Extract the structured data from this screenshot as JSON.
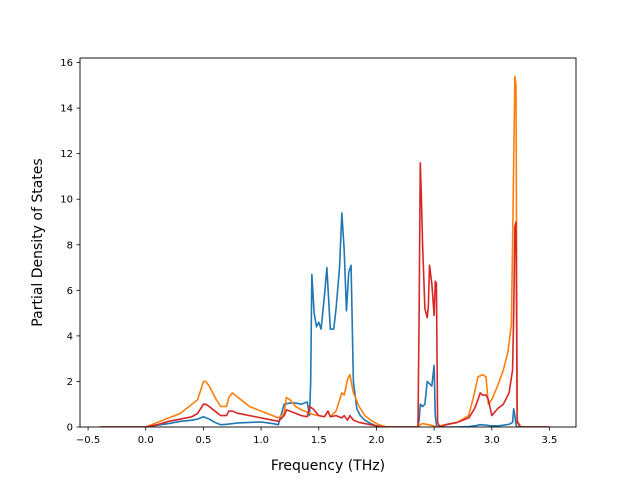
{
  "chart_data": {
    "type": "line",
    "title": "",
    "xlabel": "Frequency (THz)",
    "ylabel": "Partial Density of States",
    "xlim": [
      -0.57,
      3.73
    ],
    "ylim": [
      0,
      16.2
    ],
    "xticks": [
      -0.5,
      0.0,
      0.5,
      1.0,
      1.5,
      2.0,
      2.5,
      3.0,
      3.5
    ],
    "xtick_labels": [
      "−0.5",
      "0.0",
      "0.5",
      "1.0",
      "1.5",
      "2.0",
      "2.5",
      "3.0",
      "3.5"
    ],
    "yticks": [
      0,
      2,
      4,
      6,
      8,
      10,
      12,
      14,
      16
    ],
    "ytick_labels": [
      "0",
      "2",
      "4",
      "6",
      "8",
      "10",
      "12",
      "14",
      "16"
    ],
    "grid": false,
    "legend": "none",
    "series": [
      {
        "name": "series-1",
        "color": "#1f77b4",
        "x": [
          -0.4,
          0.0,
          0.1,
          0.2,
          0.3,
          0.4,
          0.45,
          0.5,
          0.55,
          0.6,
          0.65,
          0.7,
          0.8,
          0.9,
          1.0,
          1.1,
          1.15,
          1.2,
          1.25,
          1.3,
          1.35,
          1.4,
          1.42,
          1.43,
          1.44,
          1.46,
          1.48,
          1.5,
          1.52,
          1.55,
          1.57,
          1.6,
          1.63,
          1.65,
          1.68,
          1.7,
          1.72,
          1.74,
          1.76,
          1.78,
          1.8,
          1.83,
          1.86,
          1.9,
          1.95,
          2.0,
          2.05,
          2.1,
          2.2,
          2.3,
          2.36,
          2.37,
          2.38,
          2.4,
          2.42,
          2.44,
          2.46,
          2.48,
          2.5,
          2.51,
          2.52,
          2.53,
          2.55,
          2.6,
          2.7,
          2.8,
          2.85,
          2.9,
          2.95,
          3.0,
          3.05,
          3.1,
          3.15,
          3.18,
          3.19,
          3.2,
          3.21,
          3.22,
          3.25,
          3.3,
          3.5
        ],
        "y": [
          0,
          0,
          0.08,
          0.15,
          0.25,
          0.3,
          0.35,
          0.45,
          0.35,
          0.2,
          0.1,
          0.12,
          0.18,
          0.2,
          0.22,
          0.15,
          0.1,
          1.0,
          1.05,
          1.05,
          1.0,
          1.1,
          0.5,
          2.0,
          6.7,
          5.0,
          4.4,
          4.6,
          4.3,
          5.8,
          7.0,
          4.3,
          4.3,
          5.2,
          7.0,
          9.4,
          7.8,
          5.1,
          6.8,
          7.1,
          2.0,
          0.8,
          0.5,
          0.3,
          0.15,
          0.05,
          0,
          0,
          0,
          0,
          0,
          0.3,
          1.0,
          0.9,
          1.0,
          2.0,
          1.9,
          1.8,
          2.7,
          0.5,
          0.1,
          0,
          0,
          0,
          0,
          0.02,
          0.05,
          0.1,
          0.08,
          0.05,
          0.05,
          0.08,
          0.12,
          0.2,
          0.8,
          0.5,
          0.1,
          0,
          0,
          0,
          0
        ]
      },
      {
        "name": "series-2",
        "color": "#ff7f0e",
        "x": [
          -0.4,
          0.0,
          0.1,
          0.2,
          0.3,
          0.35,
          0.4,
          0.45,
          0.5,
          0.52,
          0.55,
          0.6,
          0.65,
          0.7,
          0.72,
          0.75,
          0.8,
          0.85,
          0.9,
          0.95,
          1.0,
          1.05,
          1.1,
          1.15,
          1.2,
          1.22,
          1.25,
          1.3,
          1.35,
          1.4,
          1.45,
          1.5,
          1.55,
          1.58,
          1.6,
          1.65,
          1.7,
          1.72,
          1.75,
          1.77,
          1.8,
          1.85,
          1.9,
          1.95,
          2.0,
          2.05,
          2.1,
          2.2,
          2.3,
          2.36,
          2.38,
          2.4,
          2.45,
          2.5,
          2.52,
          2.55,
          2.6,
          2.7,
          2.8,
          2.85,
          2.88,
          2.92,
          2.95,
          2.97,
          3.0,
          3.05,
          3.1,
          3.14,
          3.17,
          3.18,
          3.2,
          3.21,
          3.22,
          3.25,
          3.3,
          3.5
        ],
        "y": [
          0,
          0,
          0.2,
          0.4,
          0.6,
          0.8,
          1.0,
          1.2,
          2.0,
          2.0,
          1.8,
          1.3,
          0.9,
          0.9,
          1.3,
          1.5,
          1.3,
          1.1,
          0.9,
          0.8,
          0.7,
          0.6,
          0.5,
          0.4,
          0.6,
          1.3,
          1.2,
          0.9,
          0.75,
          0.65,
          0.55,
          0.5,
          0.45,
          0.7,
          0.45,
          0.7,
          1.5,
          1.4,
          2.1,
          2.3,
          1.5,
          0.9,
          0.5,
          0.3,
          0.15,
          0.05,
          0,
          0,
          0,
          0,
          0.1,
          0.15,
          0.1,
          0.05,
          0,
          0.05,
          0.1,
          0.2,
          0.5,
          1.5,
          2.2,
          2.3,
          2.2,
          1.0,
          1.2,
          1.8,
          2.5,
          3.3,
          4.5,
          8.0,
          15.4,
          15.0,
          0.3,
          0,
          0,
          0
        ]
      },
      {
        "name": "series-3",
        "color": "#d62728",
        "x": [
          -0.4,
          0.0,
          0.1,
          0.2,
          0.3,
          0.4,
          0.45,
          0.5,
          0.52,
          0.55,
          0.6,
          0.65,
          0.7,
          0.72,
          0.75,
          0.8,
          0.85,
          0.9,
          0.95,
          1.0,
          1.05,
          1.1,
          1.15,
          1.2,
          1.22,
          1.25,
          1.3,
          1.35,
          1.4,
          1.42,
          1.45,
          1.5,
          1.55,
          1.58,
          1.6,
          1.65,
          1.7,
          1.72,
          1.75,
          1.77,
          1.8,
          1.85,
          1.9,
          2.0,
          2.05,
          2.1,
          2.2,
          2.3,
          2.36,
          2.37,
          2.38,
          2.39,
          2.4,
          2.42,
          2.44,
          2.45,
          2.46,
          2.48,
          2.5,
          2.51,
          2.52,
          2.53,
          2.55,
          2.6,
          2.7,
          2.8,
          2.85,
          2.88,
          2.9,
          2.92,
          2.95,
          2.97,
          3.0,
          3.05,
          3.1,
          3.15,
          3.18,
          3.19,
          3.2,
          3.21,
          3.22,
          3.25,
          3.3,
          3.5
        ],
        "y": [
          0,
          0,
          0.1,
          0.25,
          0.35,
          0.45,
          0.6,
          1.0,
          1.0,
          0.9,
          0.7,
          0.5,
          0.5,
          0.7,
          0.7,
          0.6,
          0.55,
          0.5,
          0.45,
          0.4,
          0.35,
          0.3,
          0.25,
          0.5,
          0.75,
          0.7,
          0.6,
          0.5,
          0.45,
          0.9,
          0.8,
          0.5,
          0.45,
          0.7,
          0.45,
          0.5,
          0.4,
          0.5,
          0.3,
          0.5,
          0.3,
          0.2,
          0.15,
          0.05,
          0,
          0,
          0,
          0,
          0,
          5.0,
          11.6,
          10.0,
          8.0,
          5.2,
          4.8,
          5.3,
          7.1,
          6.3,
          4.9,
          6.4,
          6.3,
          0.2,
          0,
          0.1,
          0.2,
          0.4,
          0.8,
          1.2,
          1.5,
          1.4,
          1.4,
          1.2,
          0.5,
          0.8,
          1.0,
          1.5,
          2.5,
          5.0,
          8.8,
          9.0,
          0.2,
          0,
          0,
          0
        ]
      }
    ]
  }
}
